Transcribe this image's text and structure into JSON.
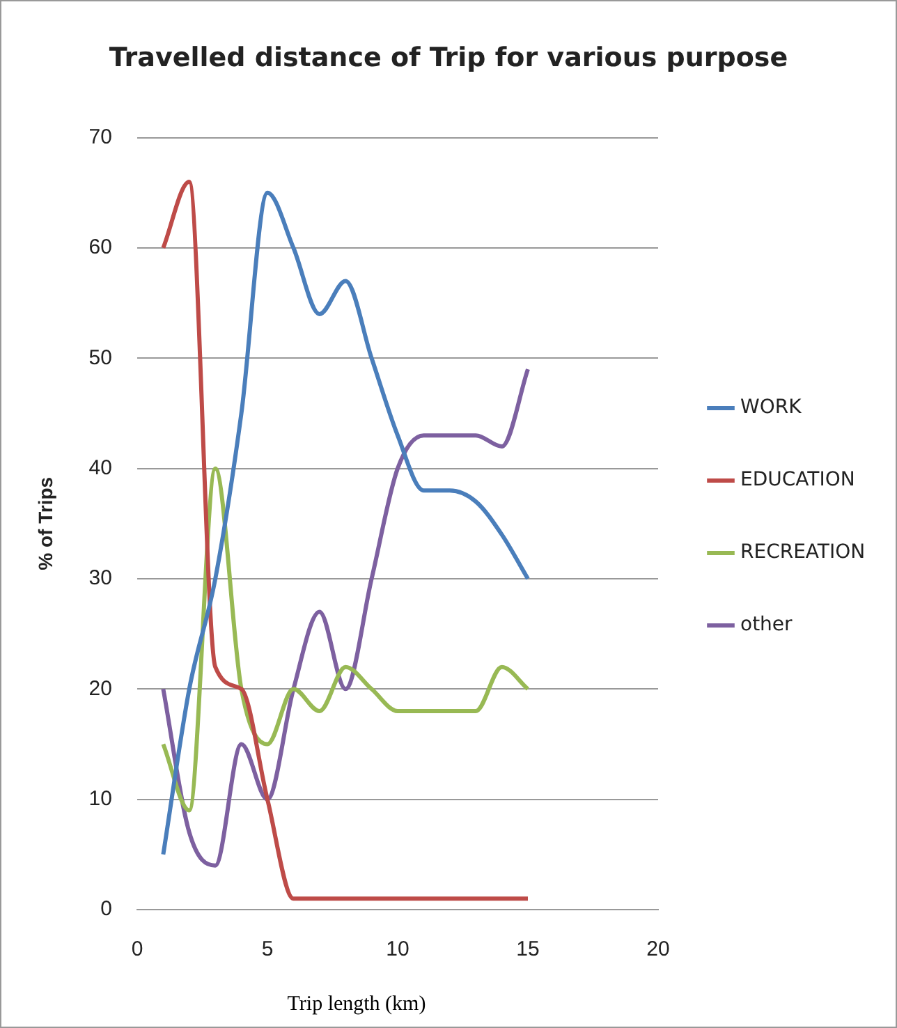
{
  "chart_data": {
    "type": "line",
    "title": "Travelled distance of Trip for various purpose",
    "xlabel": "Trip length (km)",
    "ylabel": "% of Trips",
    "x": [
      1,
      2,
      3,
      4,
      5,
      6,
      7,
      8,
      9,
      10,
      11,
      12,
      13,
      14,
      15
    ],
    "series": [
      {
        "name": "WORK",
        "color": "#4a7ebb",
        "values": [
          5,
          20,
          30,
          45,
          65,
          60,
          54,
          57,
          50,
          43,
          38,
          38,
          37,
          34,
          30
        ]
      },
      {
        "name": "EDUCATION",
        "color": "#be4b48",
        "values": [
          60,
          66,
          22,
          20,
          10,
          1,
          1,
          1,
          1,
          1,
          1,
          1,
          1,
          1,
          1
        ]
      },
      {
        "name": "RECREATION",
        "color": "#98b954",
        "values": [
          15,
          9,
          40,
          20,
          15,
          20,
          18,
          22,
          20,
          18,
          18,
          18,
          18,
          22,
          20
        ]
      },
      {
        "name": "other",
        "color": "#7d60a0",
        "values": [
          20,
          7,
          4,
          15,
          10,
          20,
          27,
          20,
          30,
          40,
          43,
          43,
          43,
          42,
          49
        ]
      }
    ],
    "xlim": [
      0,
      20
    ],
    "xticks": [
      0,
      5,
      10,
      15,
      20
    ],
    "ylim": [
      0,
      70
    ],
    "yticks": [
      0,
      10,
      20,
      30,
      40,
      50,
      60,
      70
    ],
    "grid": "y",
    "legend": "right",
    "marker": "none",
    "line_style": "solid"
  }
}
